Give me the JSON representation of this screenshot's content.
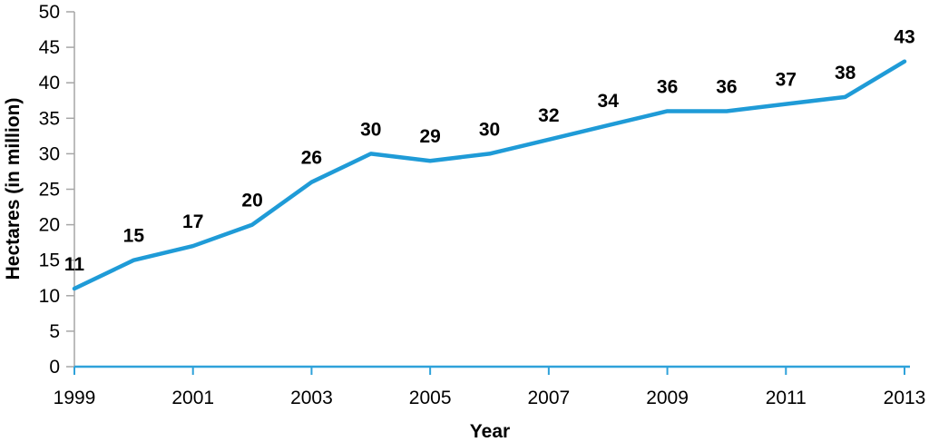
{
  "chart_data": {
    "type": "line",
    "title": "",
    "xlabel": "Year",
    "ylabel": "Hectares (in million)",
    "x": [
      1999,
      2000,
      2001,
      2002,
      2003,
      2004,
      2005,
      2006,
      2007,
      2008,
      2009,
      2010,
      2011,
      2012,
      2013
    ],
    "series": [
      {
        "name": "Hectares (in million)",
        "values": [
          11,
          15,
          17,
          20,
          26,
          30,
          29,
          30,
          32,
          34,
          36,
          36,
          37,
          38,
          43
        ]
      }
    ],
    "data_labels": [
      11,
      15,
      17,
      20,
      26,
      30,
      29,
      30,
      32,
      34,
      36,
      36,
      37,
      38,
      43
    ],
    "ylim": [
      0,
      50
    ],
    "y_ticks": [
      0,
      5,
      10,
      15,
      20,
      25,
      30,
      35,
      40,
      45,
      50
    ],
    "x_tick_labels": [
      "1999",
      "2001",
      "2003",
      "2005",
      "2007",
      "2009",
      "2011",
      "2013"
    ],
    "grid": false,
    "legend": "none",
    "markers": false,
    "colors": {
      "line": "#1F9BD7",
      "x_axis": "#2FA2DA",
      "y_axis": "#A6A6A6",
      "text": "#000000",
      "background": "#FFFFFF"
    }
  }
}
